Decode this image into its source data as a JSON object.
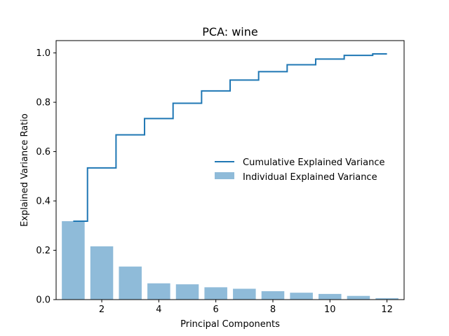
{
  "chart_data": {
    "type": "bar",
    "title": "PCA: wine",
    "xlabel": "Principal Components",
    "ylabel": "Explained Variance Ratio",
    "xlim": [
      0.4,
      12.6
    ],
    "ylim": [
      0,
      1.05
    ],
    "x_ticks": [
      2,
      4,
      6,
      8,
      10,
      12
    ],
    "y_ticks": [
      0.0,
      0.2,
      0.4,
      0.6,
      0.8,
      1.0
    ],
    "y_tick_labels": [
      "0.0",
      "0.2",
      "0.4",
      "0.6",
      "0.8",
      "1.0"
    ],
    "components": [
      1,
      2,
      3,
      4,
      5,
      6,
      7,
      8,
      9,
      10,
      11,
      12
    ],
    "series": [
      {
        "name": "Individual Explained Variance",
        "kind": "bar",
        "color": "#8fbbd9",
        "values": [
          0.318,
          0.216,
          0.134,
          0.066,
          0.062,
          0.05,
          0.044,
          0.034,
          0.028,
          0.023,
          0.015,
          0.006
        ]
      },
      {
        "name": "Cumulative Explained Variance",
        "kind": "step",
        "color": "#1f77b4",
        "values": [
          0.318,
          0.534,
          0.668,
          0.734,
          0.796,
          0.846,
          0.89,
          0.924,
          0.952,
          0.975,
          0.99,
          0.996
        ]
      }
    ],
    "grid": false,
    "legend_position": "center-right"
  }
}
